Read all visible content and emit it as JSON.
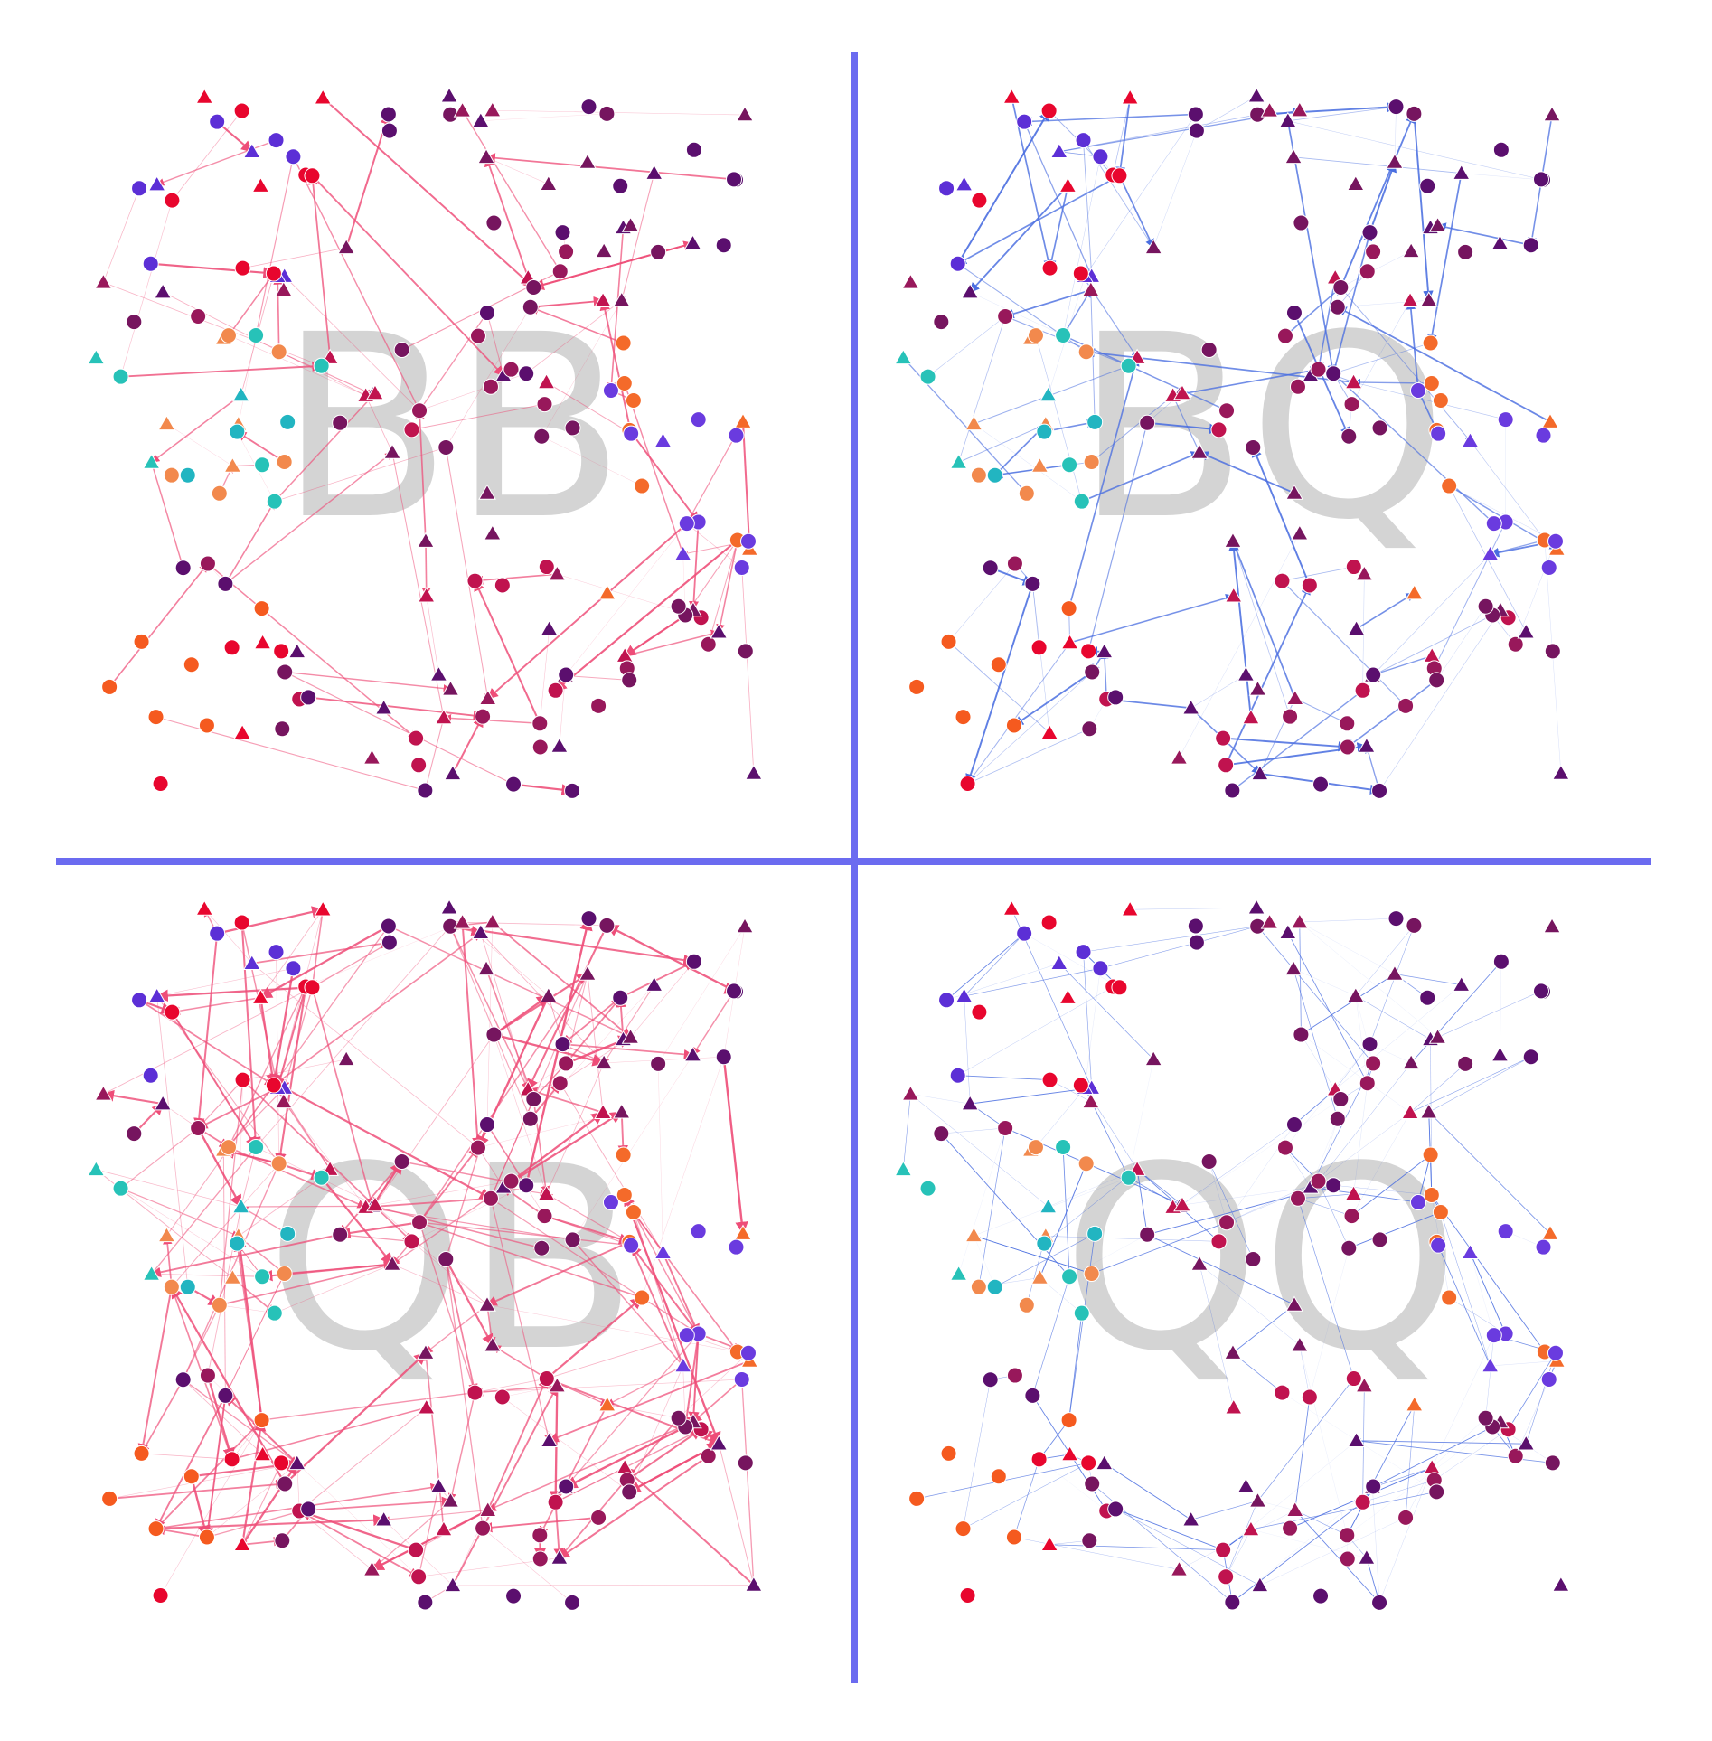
{
  "figure": {
    "panels": [
      {
        "label": "BB",
        "edge_style": "pink"
      },
      {
        "label": "BQ",
        "edge_style": "blue"
      },
      {
        "label": "QB",
        "edge_style": "pink"
      },
      {
        "label": "QQ",
        "edge_style": "blue"
      }
    ]
  },
  "colors": {
    "divider": "#6b6bf0",
    "label": "#d4d4d4",
    "edge_pink": "#ee4d78",
    "edge_blue": "#4a6ee0"
  },
  "node_palette": [
    "#e8062e",
    "#c0134f",
    "#98185b",
    "#76155f",
    "#5b0f6e",
    "#5c2fd6",
    "#6a3bdf",
    "#3f6ad8",
    "#2d7bd6",
    "#1f8fc9",
    "#22b5c1",
    "#27c2b8",
    "#f2894d",
    "#f46a2a",
    "#f55a1f",
    "#e84b22"
  ]
}
